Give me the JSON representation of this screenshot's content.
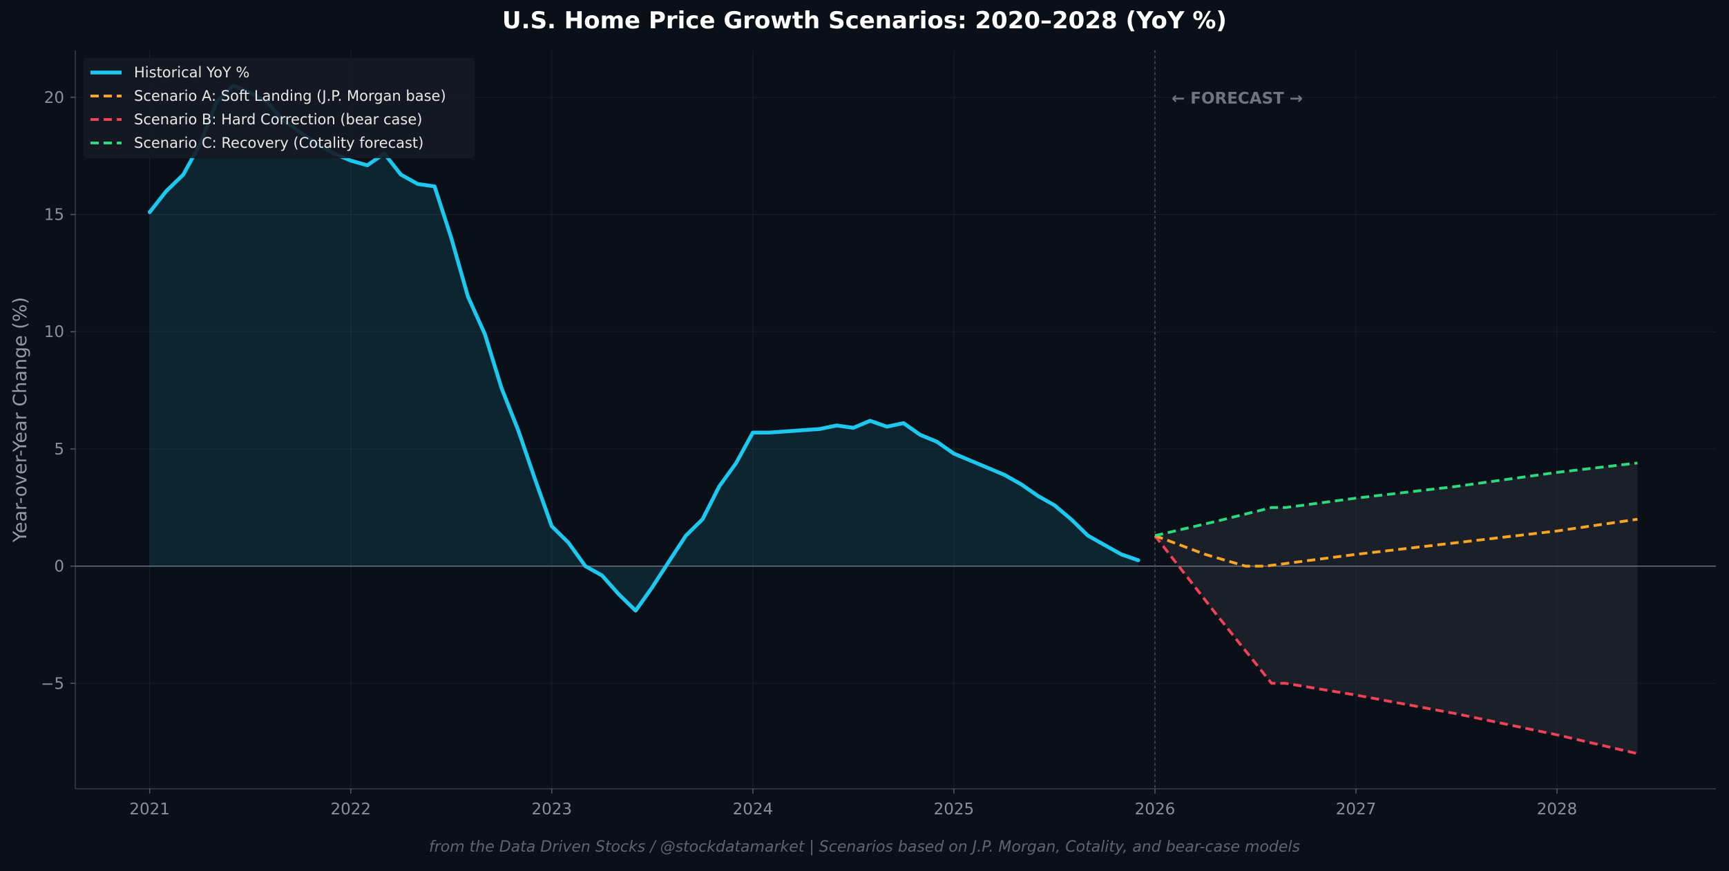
{
  "title": "U.S. Home Price Growth Scenarios: 2020–2028 (YoY %)",
  "footer": "from the Data Driven Stocks / @stockdatamarket  |  Scenarios based on J.P. Morgan, Cotality, and bear-case models",
  "colors": {
    "background": "#0b0f17",
    "historical": "#1cc8ee",
    "scenario_a": "#f7a525",
    "scenario_b": "#ef4257",
    "scenario_c": "#2bd97f"
  },
  "chart_data": {
    "type": "line",
    "title": "U.S. Home Price Growth Scenarios: 2020–2028 (YoY %)",
    "xlabel": "",
    "ylabel": "Year-over-Year Change (%)",
    "xlim": [
      2020.63,
      2028.79
    ],
    "ylim": [
      -9.5,
      22
    ],
    "x_ticks": [
      2021,
      2022,
      2023,
      2024,
      2025,
      2026,
      2027,
      2028
    ],
    "x_tick_labels": [
      "2021",
      "2022",
      "2023",
      "2024",
      "2025",
      "2026",
      "2027",
      "2028"
    ],
    "y_ticks": [
      -5,
      0,
      5,
      10,
      15,
      20
    ],
    "y_tick_labels": [
      "−5",
      "0",
      "5",
      "10",
      "15",
      "20"
    ],
    "grid": true,
    "legend_position": "top-left",
    "annotation": "← FORECAST →",
    "forecast_start": 2026.0,
    "series": [
      {
        "name": "Historical YoY %",
        "style": "solid",
        "color": "#1cc8ee",
        "x": [
          2021.0,
          2021.083,
          2021.167,
          2021.25,
          2021.333,
          2021.417,
          2021.5,
          2021.583,
          2021.667,
          2021.75,
          2021.833,
          2021.917,
          2022.0,
          2022.083,
          2022.167,
          2022.25,
          2022.333,
          2022.417,
          2022.5,
          2022.583,
          2022.667,
          2022.75,
          2022.833,
          2022.917,
          2023.0,
          2023.083,
          2023.167,
          2023.25,
          2023.333,
          2023.417,
          2023.5,
          2023.583,
          2023.667,
          2023.75,
          2023.833,
          2023.917,
          2024.0,
          2024.083,
          2024.167,
          2024.25,
          2024.333,
          2024.417,
          2024.5,
          2024.583,
          2024.667,
          2024.75,
          2024.833,
          2024.917,
          2025.0,
          2025.083,
          2025.167,
          2025.25,
          2025.333,
          2025.417,
          2025.5,
          2025.583,
          2025.667,
          2025.75,
          2025.833,
          2025.917
        ],
        "values": [
          15.1,
          16.0,
          16.7,
          18.0,
          19.8,
          20.5,
          20.2,
          19.8,
          19.0,
          18.5,
          18.0,
          17.6,
          17.3,
          17.1,
          17.6,
          16.7,
          16.3,
          16.2,
          14.0,
          11.5,
          9.9,
          7.6,
          5.8,
          3.7,
          1.7,
          1.0,
          0.0,
          -0.4,
          -1.2,
          -1.9,
          -0.9,
          0.2,
          1.3,
          2.0,
          3.4,
          4.4,
          5.7,
          5.7,
          5.75,
          5.8,
          5.85,
          6.0,
          5.9,
          6.2,
          5.95,
          6.1,
          5.6,
          5.3,
          4.8,
          4.5,
          4.2,
          3.9,
          3.5,
          3.0,
          2.6,
          2.0,
          1.3,
          0.9,
          0.5,
          0.25
        ]
      },
      {
        "name": "Scenario A: Soft Landing (J.P. Morgan base)",
        "style": "dashed",
        "color": "#f7a525",
        "x": [
          2026.0,
          2026.25,
          2026.45,
          2026.55,
          2027.0,
          2027.5,
          2028.0,
          2028.4
        ],
        "values": [
          1.3,
          0.5,
          0.0,
          0.0,
          0.5,
          1.0,
          1.5,
          2.0
        ]
      },
      {
        "name": "Scenario B: Hard Correction (bear case)",
        "style": "dashed",
        "color": "#ef4257",
        "x": [
          2026.0,
          2026.3,
          2026.58,
          2026.65,
          2027.0,
          2027.5,
          2028.0,
          2028.4
        ],
        "values": [
          1.3,
          -2.0,
          -5.0,
          -5.0,
          -5.5,
          -6.3,
          -7.2,
          -8.0
        ]
      },
      {
        "name": "Scenario C: Recovery (Cotality forecast)",
        "style": "dashed",
        "color": "#2bd97f",
        "x": [
          2026.0,
          2026.3,
          2026.58,
          2026.65,
          2027.0,
          2027.5,
          2028.0,
          2028.4
        ],
        "values": [
          1.3,
          1.9,
          2.5,
          2.5,
          2.9,
          3.4,
          4.0,
          4.4
        ]
      }
    ]
  }
}
